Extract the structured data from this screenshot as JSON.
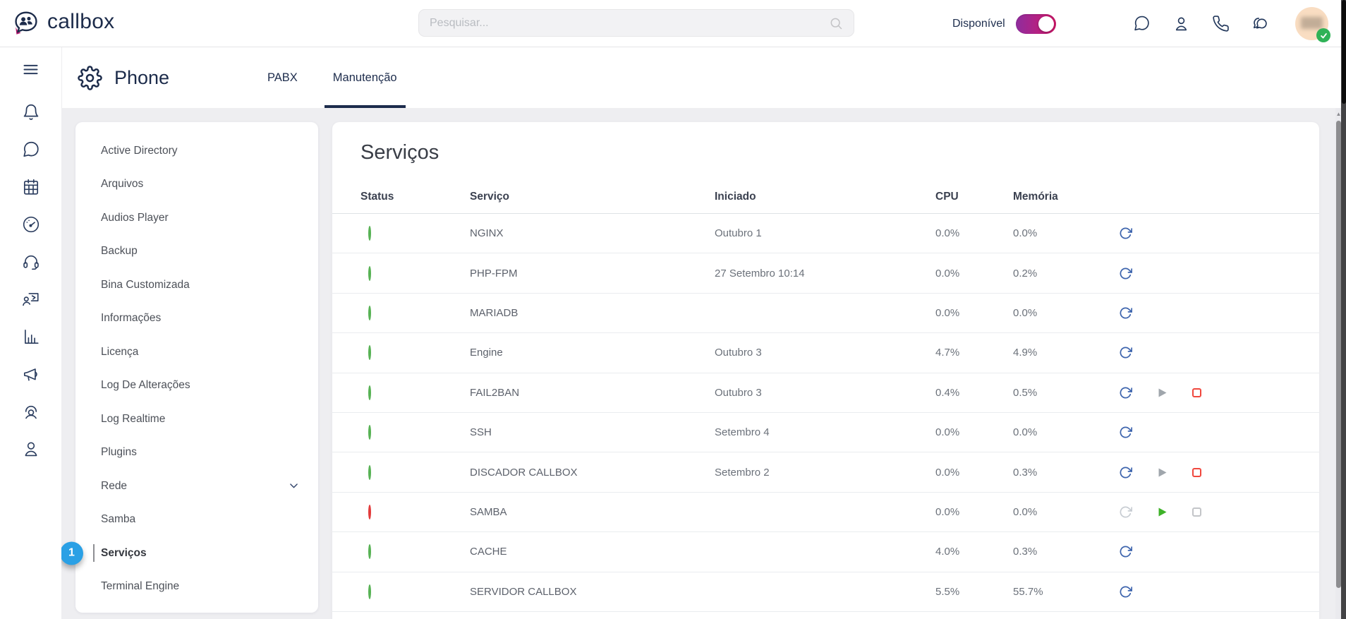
{
  "topbar": {
    "brand": "callbox",
    "search": {
      "placeholder": "Pesquisar...",
      "value": ""
    },
    "availability": {
      "label": "Disponível",
      "state": "on"
    },
    "action_icons": [
      {
        "name": "chat-bubble-icon"
      },
      {
        "name": "contacts-icon"
      },
      {
        "name": "phone-icon"
      },
      {
        "name": "conversations-icon"
      }
    ],
    "avatar": {
      "status": "online"
    }
  },
  "rail": [
    {
      "name": "menu-icon"
    },
    {
      "name": "bell-icon"
    },
    {
      "name": "chat-icon"
    },
    {
      "name": "calendar-icon"
    },
    {
      "name": "dashboard-gauge-icon"
    },
    {
      "name": "headset-icon"
    },
    {
      "name": "training-icon"
    },
    {
      "name": "bar-chart-icon"
    },
    {
      "name": "megaphone-icon"
    },
    {
      "name": "support-agent-icon"
    },
    {
      "name": "user-icon"
    }
  ],
  "header": {
    "title": "Phone",
    "tabs": [
      {
        "label": "PABX",
        "active": false
      },
      {
        "label": "Manutenção",
        "active": true
      }
    ]
  },
  "sidebar": {
    "items": [
      {
        "label": "Active Directory"
      },
      {
        "label": "Arquivos"
      },
      {
        "label": "Audios Player"
      },
      {
        "label": "Backup"
      },
      {
        "label": "Bina Customizada"
      },
      {
        "label": "Informações"
      },
      {
        "label": "Licença"
      },
      {
        "label": "Log De Alterações"
      },
      {
        "label": "Log Realtime"
      },
      {
        "label": "Plugins"
      },
      {
        "label": "Rede",
        "chevron": true
      },
      {
        "label": "Samba"
      },
      {
        "label": "Serviços",
        "active": true,
        "badge": "1"
      },
      {
        "label": "Terminal Engine"
      }
    ]
  },
  "main": {
    "title": "Serviços",
    "table": {
      "columns": [
        "Status",
        "Serviço",
        "Iniciado",
        "CPU",
        "Memória"
      ],
      "rows": [
        {
          "status": "green",
          "service": "NGINX",
          "started": "Outubro 1",
          "cpu": "0.0%",
          "memory": "0.0%",
          "actions": [
            "restart"
          ]
        },
        {
          "status": "green",
          "service": "PHP-FPM",
          "started": "27 Setembro 10:14",
          "cpu": "0.0%",
          "memory": "0.2%",
          "actions": [
            "restart"
          ]
        },
        {
          "status": "green",
          "service": "MARIADB",
          "started": "",
          "cpu": "0.0%",
          "memory": "0.0%",
          "actions": [
            "restart"
          ]
        },
        {
          "status": "green",
          "service": "Engine",
          "started": "Outubro 3",
          "cpu": "4.7%",
          "memory": "4.9%",
          "actions": [
            "restart"
          ]
        },
        {
          "status": "green",
          "service": "FAIL2BAN",
          "started": "Outubro 3",
          "cpu": "0.4%",
          "memory": "0.5%",
          "actions": [
            "restart",
            "play-disabled",
            "stop-red"
          ]
        },
        {
          "status": "green",
          "service": "SSH",
          "started": "Setembro 4",
          "cpu": "0.0%",
          "memory": "0.0%",
          "actions": [
            "restart"
          ]
        },
        {
          "status": "green",
          "service": "DISCADOR CALLBOX",
          "started": "Setembro 2",
          "cpu": "0.0%",
          "memory": "0.3%",
          "actions": [
            "restart",
            "play-disabled",
            "stop-red"
          ]
        },
        {
          "status": "red",
          "service": "SAMBA",
          "started": "",
          "cpu": "0.0%",
          "memory": "0.0%",
          "actions": [
            "restart-disabled",
            "play-green",
            "stop-disabled"
          ]
        },
        {
          "status": "green",
          "service": "CACHE",
          "started": "",
          "cpu": "4.0%",
          "memory": "0.3%",
          "actions": [
            "restart"
          ]
        },
        {
          "status": "green",
          "service": "SERVIDOR CALLBOX",
          "started": "",
          "cpu": "5.5%",
          "memory": "55.7%",
          "actions": [
            "restart"
          ]
        }
      ]
    }
  },
  "colors": {
    "brand_navy": "#1c2b4a",
    "accent_magenta": "#b5186e",
    "toggle_gradient": [
      "#8f2d9e",
      "#d4176b"
    ],
    "badge_blue": "#2aa0e5",
    "status_green": "#57b254",
    "status_red": "#e23b3b",
    "restart_blue": "#3d64ad",
    "play_green": "#3eb229",
    "stop_red": "#f0483e",
    "online_green": "#2fb257"
  }
}
